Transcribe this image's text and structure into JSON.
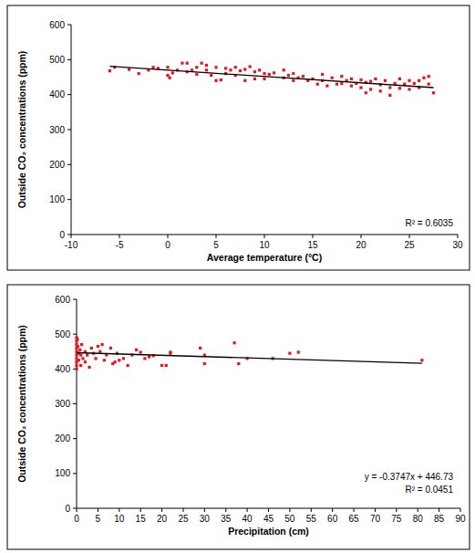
{
  "chart_data": [
    {
      "type": "scatter",
      "x_label": "Average temperature (°C)",
      "y_label": "Outside CO₂ concentrations (ppm)",
      "annotations": [
        "R² = 0.6035"
      ],
      "xlim": [
        -10,
        30
      ],
      "xticks": [
        -10,
        -5,
        0,
        5,
        10,
        15,
        20,
        25,
        30
      ],
      "ylim": [
        0,
        600
      ],
      "yticks": [
        0,
        100,
        200,
        300,
        400,
        500,
        600
      ],
      "grid": false,
      "series": [
        {
          "type": "scatter",
          "color": "#e8141b",
          "marker": "square",
          "x": [
            -6,
            -5.5,
            -4,
            -3,
            -2,
            -1.5,
            -1,
            0,
            0,
            0.2,
            0.5,
            1,
            1.5,
            2,
            2,
            2.5,
            3,
            3,
            3.5,
            4,
            4,
            4.5,
            5,
            5,
            5.5,
            6,
            6,
            6.5,
            7,
            7,
            7.5,
            8,
            8,
            8.5,
            9,
            9,
            9.5,
            10,
            10,
            10.5,
            11,
            12,
            12,
            12.5,
            13,
            13,
            13.5,
            14,
            14.5,
            15,
            15.5,
            16,
            16,
            16.5,
            17,
            17.5,
            18,
            18,
            18.5,
            19,
            19,
            19.5,
            20,
            20,
            20.5,
            20.5,
            21,
            21,
            21.5,
            22,
            22,
            22.5,
            23,
            23,
            23.5,
            24,
            24,
            24.5,
            25,
            25,
            25.5,
            26,
            26,
            26.5,
            27,
            27,
            27.5
          ],
          "values": [
            468,
            478,
            472,
            460,
            470,
            478,
            475,
            478,
            455,
            448,
            462,
            470,
            490,
            490,
            465,
            470,
            458,
            478,
            490,
            484,
            470,
            455,
            478,
            440,
            442,
            475,
            460,
            470,
            478,
            455,
            468,
            472,
            440,
            480,
            465,
            445,
            470,
            460,
            445,
            458,
            462,
            448,
            470,
            455,
            440,
            460,
            448,
            452,
            440,
            445,
            430,
            458,
            440,
            425,
            448,
            430,
            452,
            432,
            440,
            445,
            425,
            432,
            442,
            420,
            405,
            435,
            438,
            415,
            445,
            428,
            410,
            440,
            420,
            398,
            432,
            445,
            418,
            430,
            440,
            415,
            432,
            440,
            420,
            448,
            452,
            430,
            405
          ]
        },
        {
          "type": "line",
          "color": "#000000",
          "line_style": "solid",
          "x": [
            -6,
            27.5
          ],
          "values": [
            481,
            420
          ]
        }
      ]
    },
    {
      "type": "scatter",
      "x_label": "Precipitation (cm)",
      "y_label": "Outside CO₂ concentrations (ppm)",
      "annotations": [
        "y = -0.3747x + 446.73",
        "R² = 0.0451"
      ],
      "xlim": [
        0,
        90
      ],
      "xticks": [
        0,
        5,
        10,
        15,
        20,
        25,
        30,
        35,
        40,
        45,
        50,
        55,
        60,
        65,
        70,
        75,
        80,
        85,
        90
      ],
      "ylim": [
        0,
        600
      ],
      "yticks": [
        0,
        100,
        200,
        300,
        400,
        500,
        600
      ],
      "grid": false,
      "series": [
        {
          "type": "scatter",
          "color": "#e8141b",
          "marker": "square",
          "x": [
            0,
            0,
            0,
            0,
            0,
            0,
            0,
            0,
            0,
            0,
            0.2,
            0.3,
            0.5,
            0.5,
            0.8,
            1,
            1,
            1.2,
            1.5,
            2,
            2,
            2.5,
            3,
            3.5,
            4,
            4.5,
            5,
            5.5,
            6,
            6.5,
            7,
            8,
            8.5,
            9,
            9.5,
            10,
            11,
            12,
            13,
            14,
            15,
            16,
            17,
            18,
            20,
            21,
            22,
            22,
            29,
            30,
            30,
            37,
            38,
            40,
            46,
            50,
            52,
            81
          ],
          "values": [
            490,
            480,
            470,
            460,
            450,
            440,
            430,
            420,
            410,
            400,
            485,
            465,
            445,
            425,
            455,
            440,
            410,
            470,
            430,
            450,
            420,
            440,
            405,
            460,
            445,
            430,
            465,
            450,
            470,
            425,
            440,
            460,
            415,
            420,
            445,
            425,
            430,
            410,
            440,
            455,
            448,
            430,
            435,
            438,
            410,
            410,
            448,
            445,
            460,
            415,
            440,
            475,
            415,
            430,
            430,
            445,
            448,
            425
          ]
        },
        {
          "type": "line",
          "color": "#000000",
          "line_style": "solid",
          "x": [
            0,
            81
          ],
          "values": [
            446.73,
            416.38
          ]
        }
      ]
    }
  ]
}
